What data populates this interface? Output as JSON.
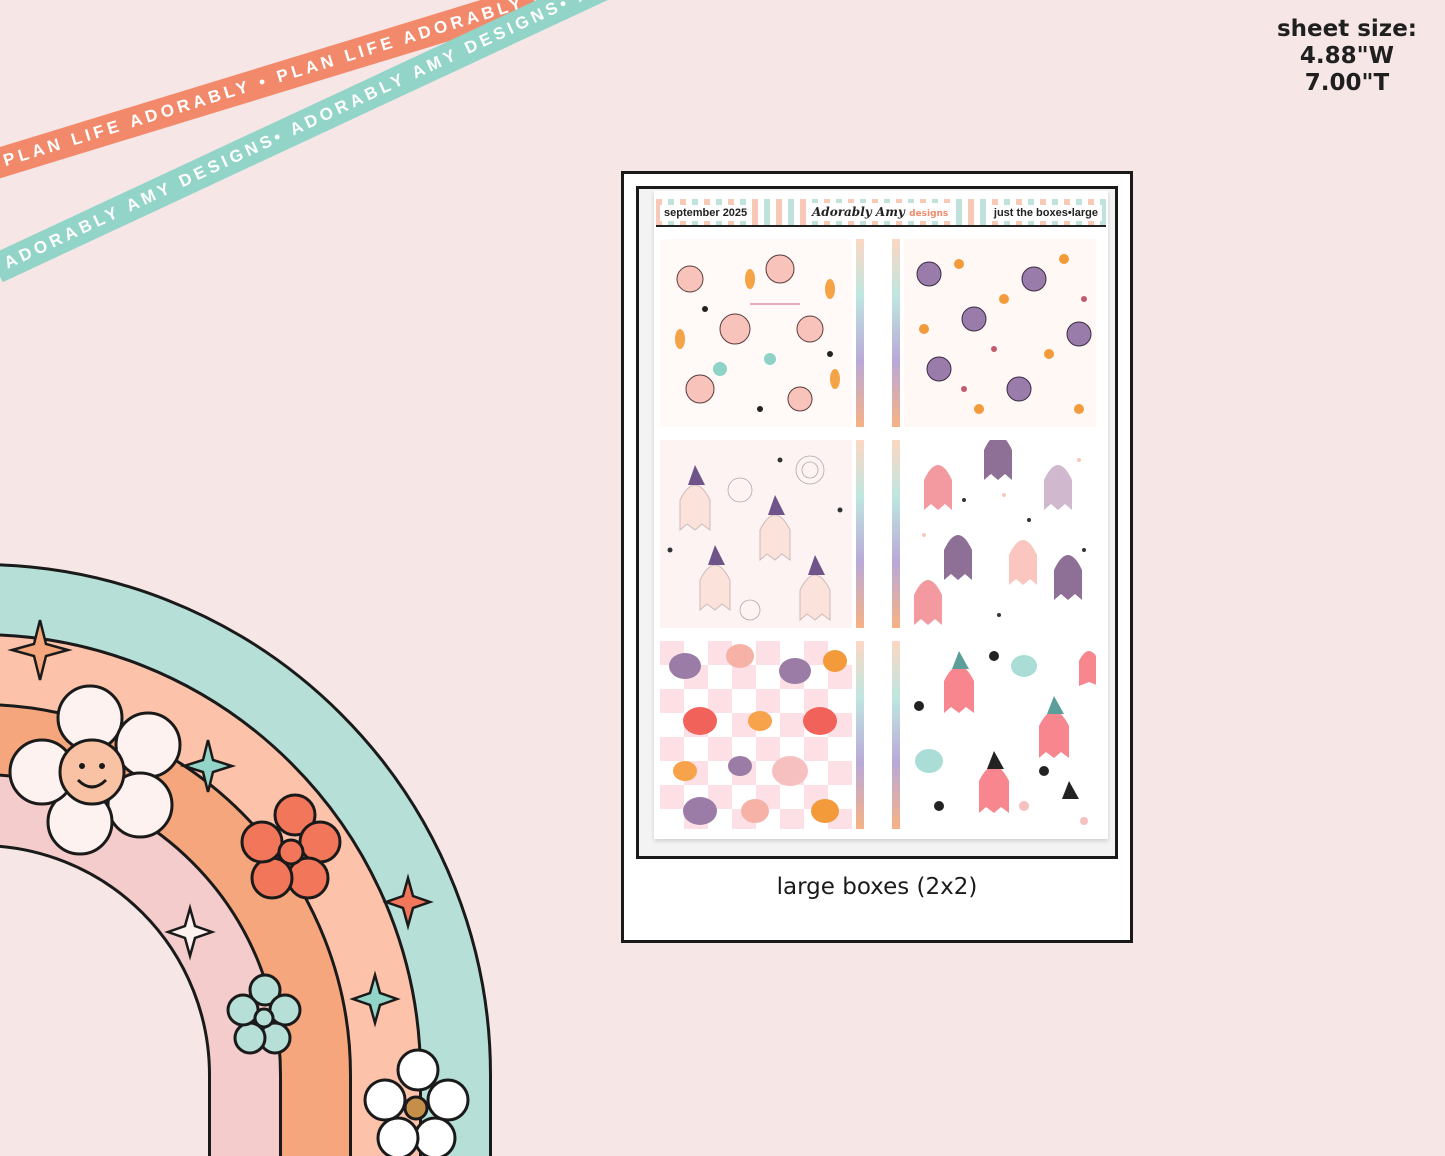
{
  "ribbons": {
    "coral_text": "PLAN LIFE ADORABLY • PLAN LIFE ADORABLY • PLAN LIFE ADORABLY •",
    "mint_text": "ADORABLY AMY DESIGNS• ADORABLY AMY DESIGNS• ADORABLY AMY DESIGNS•"
  },
  "sheet_size": {
    "label": "sheet size:",
    "width": "4.88\"W",
    "height": "7.00\"T"
  },
  "sticker_sheet": {
    "header_left": "september 2025",
    "logo_main": "Adorably Amy",
    "logo_sub": "designs",
    "header_right": "just the boxes•large",
    "caption": "large boxes (2x2)"
  },
  "boxes": [
    {
      "name": "cute-halloween-characters-pattern",
      "bg": "#fffaf8",
      "accent": "#f7b2a8"
    },
    {
      "name": "pumpkin-witch-pattern",
      "bg": "#fff8f4",
      "accent": "#7a5a8c"
    },
    {
      "name": "ghost-witch-spiderweb-pattern",
      "bg": "#fdf3f2",
      "accent": "#b7a3c9"
    },
    {
      "name": "pastel-ghosts-pattern",
      "bg": "#ffffff",
      "accent": "#f39aa0"
    },
    {
      "name": "checkered-pumpkins-pattern",
      "bg": "#fde6ea",
      "accent": "#f37a4f"
    },
    {
      "name": "boo-ghosts-pattern",
      "bg": "#ffffff",
      "accent": "#f7868e"
    }
  ],
  "colors": {
    "rainbow_outer": "#b6dfd8",
    "rainbow_second": "#fcc3aa",
    "rainbow_third": "#f6a67c",
    "rainbow_inner": "#f3cccb",
    "ribbon_coral": "#f2896b",
    "ribbon_mint": "#93d4c8"
  }
}
